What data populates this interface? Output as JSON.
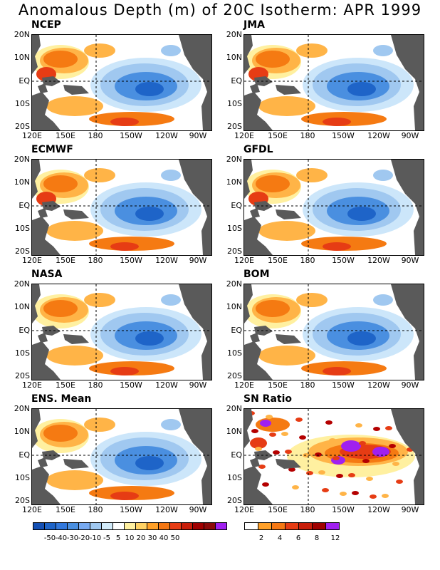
{
  "title": "Anomalous Depth (m) of 20C Isotherm: APR 1999",
  "y_ticks": [
    "20N",
    "10N",
    "EQ",
    "10S",
    "20S"
  ],
  "x_ticks": [
    "120E",
    "150E",
    "180",
    "150W",
    "120W",
    "90W"
  ],
  "colors": {
    "land": "#5a5a5a",
    "neg_dark": "#1e64c8",
    "neg_mid": "#4a8fe0",
    "neg_light": "#a0c8f0",
    "neg_pale": "#cce6fa",
    "pos_pale": "#fff0a0",
    "pos_light": "#ffb447",
    "pos_mid": "#f57a12",
    "pos_dark": "#e63c14",
    "pos_deep": "#b40000",
    "purple": "#a020f0"
  },
  "panels": [
    {
      "label": "NCEP"
    },
    {
      "label": "JMA"
    },
    {
      "label": "ECMWF"
    },
    {
      "label": "GFDL"
    },
    {
      "label": "NASA"
    },
    {
      "label": "BOM"
    },
    {
      "label": "ENS. Mean"
    },
    {
      "label": "SN Ratio"
    }
  ],
  "legend_depth": {
    "colors": [
      "#1450b4",
      "#1e64c8",
      "#3278dc",
      "#4a8fe0",
      "#78aaf0",
      "#a0c8f0",
      "#d2ebfa",
      "#ffffff",
      "#fff0a0",
      "#ffd264",
      "#ffa028",
      "#f57814",
      "#e63c14",
      "#c81e0a",
      "#a00000",
      "#8c0a0a",
      "#a020f0"
    ],
    "labels": [
      "-50",
      "-40",
      "-30",
      "-20",
      "-10",
      "-5",
      "5",
      "10",
      "20",
      "30",
      "40",
      "50"
    ]
  },
  "legend_sn": {
    "colors": [
      "#ffffff",
      "#ffa028",
      "#f57814",
      "#e63c14",
      "#c81e0a",
      "#a00000",
      "#a020f0"
    ],
    "labels": [
      "2",
      "4",
      "6",
      "8",
      "12"
    ]
  }
}
